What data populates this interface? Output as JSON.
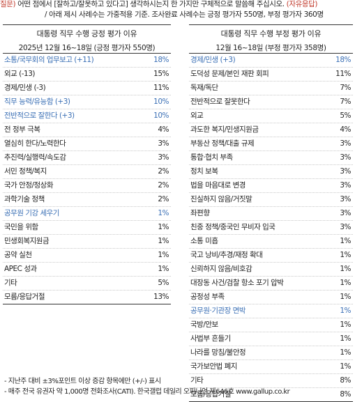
{
  "header": {
    "q_prefix": "질문)",
    "question": " 어떤 점에서 [잘하고/잘못하고 있다고] 생각하시는지 한 가지만 구체적으로 말씀해 주십시오.",
    "free_response": " (자유응답)",
    "note": "/ 아래 제시 사례수는 가중적용 기준. 조사완료 사례수는 긍정 평가자 550명, 부정 평가자 360명"
  },
  "left_table": {
    "title": "대통령 직무 수행 긍정 평가 이유",
    "subtitle": "2025년 12월 16~18일 (긍정 평가자 550명)",
    "rows": [
      {
        "label": "소통/국무회의 업무보고 (+11)",
        "value": "18%",
        "highlight": true
      },
      {
        "label": "외교 (-13)",
        "value": "15%",
        "highlight": false
      },
      {
        "label": "경제/민생 (-3)",
        "value": "11%",
        "highlight": false
      },
      {
        "label": "직무 능력/유능함 (+3)",
        "value": "10%",
        "highlight": true
      },
      {
        "label": "전반적으로 잘한다 (+3)",
        "value": "10%",
        "highlight": true
      },
      {
        "label": "전 정부 극복",
        "value": "4%",
        "highlight": false
      },
      {
        "label": "열심히 한다/노력한다",
        "value": "3%",
        "highlight": false
      },
      {
        "label": "추진력/실행력/속도감",
        "value": "3%",
        "highlight": false
      },
      {
        "label": "서민 정책/복지",
        "value": "2%",
        "highlight": false
      },
      {
        "label": "국가 안정/정상화",
        "value": "2%",
        "highlight": false
      },
      {
        "label": "과학기술 정책",
        "value": "2%",
        "highlight": false
      },
      {
        "label": "공무원 기강 세우기",
        "value": "1%",
        "highlight": true
      },
      {
        "label": "국민을 위함",
        "value": "1%",
        "highlight": false
      },
      {
        "label": "민생회복지원금",
        "value": "1%",
        "highlight": false
      },
      {
        "label": "공약 실천",
        "value": "1%",
        "highlight": false
      },
      {
        "label": "APEC 성과",
        "value": "1%",
        "highlight": false
      },
      {
        "label": "기타",
        "value": "5%",
        "highlight": false
      },
      {
        "label": "모름/응답거절",
        "value": "13%",
        "highlight": false
      }
    ]
  },
  "right_table": {
    "title": "대통령 직무 수행 부정 평가 이유",
    "subtitle": "12월 16~18일 (부정 평가자 358명)",
    "rows": [
      {
        "label": "경제/민생 (+3)",
        "value": "18%",
        "highlight": true
      },
      {
        "label": "도덕성 문제/본인 재판 회피",
        "value": "11%",
        "highlight": false
      },
      {
        "label": "독재/독단",
        "value": "7%",
        "highlight": false
      },
      {
        "label": "전반적으로 잘못한다",
        "value": "7%",
        "highlight": false
      },
      {
        "label": "외교",
        "value": "5%",
        "highlight": false
      },
      {
        "label": "과도한 복지/민생지원금",
        "value": "4%",
        "highlight": false
      },
      {
        "label": "부동산 정책/대출 규제",
        "value": "3%",
        "highlight": false
      },
      {
        "label": "통합·협치 부족",
        "value": "3%",
        "highlight": false
      },
      {
        "label": "정치 보복",
        "value": "3%",
        "highlight": false
      },
      {
        "label": "법을 마음대로 변경",
        "value": "3%",
        "highlight": false
      },
      {
        "label": "진실하지 않음/거짓말",
        "value": "3%",
        "highlight": false
      },
      {
        "label": "좌편향",
        "value": "3%",
        "highlight": false
      },
      {
        "label": "친중 정책/중국인 무비자 입국",
        "value": "3%",
        "highlight": false
      },
      {
        "label": "소통 미흡",
        "value": "1%",
        "highlight": false
      },
      {
        "label": "국고 낭비/추경/재정 확대",
        "value": "1%",
        "highlight": false
      },
      {
        "label": "신뢰하지 않음/비호감",
        "value": "1%",
        "highlight": false
      },
      {
        "label": "대장동 사건/검찰 항소 포기 압박",
        "value": "1%",
        "highlight": false
      },
      {
        "label": "공정성 부족",
        "value": "1%",
        "highlight": false
      },
      {
        "label": "공무원·기관장 면박",
        "value": "1%",
        "highlight": true
      },
      {
        "label": "국방/안보",
        "value": "1%",
        "highlight": false
      },
      {
        "label": "사법부 흔들기",
        "value": "1%",
        "highlight": false
      },
      {
        "label": "나라를 망침/불안정",
        "value": "1%",
        "highlight": false
      },
      {
        "label": "국가보안법 폐지",
        "value": "1%",
        "highlight": false
      },
      {
        "label": "기타",
        "value": "8%",
        "highlight": false
      },
      {
        "label": "모름/응답거절",
        "value": "8%",
        "highlight": false
      }
    ]
  },
  "footer": {
    "note1": "- 지난주 대비 ±3%포인트 이상 증감 항목에만 (+/-) 표시",
    "note2": "- 매주 전국 유권자 약 1,000명 전화조사(CATI). 한국갤럽 데일리 오피니언 제646호 www.gallup.co.kr"
  },
  "colors": {
    "highlight": "#3a6fb5",
    "accent_red": "#c0392b"
  }
}
